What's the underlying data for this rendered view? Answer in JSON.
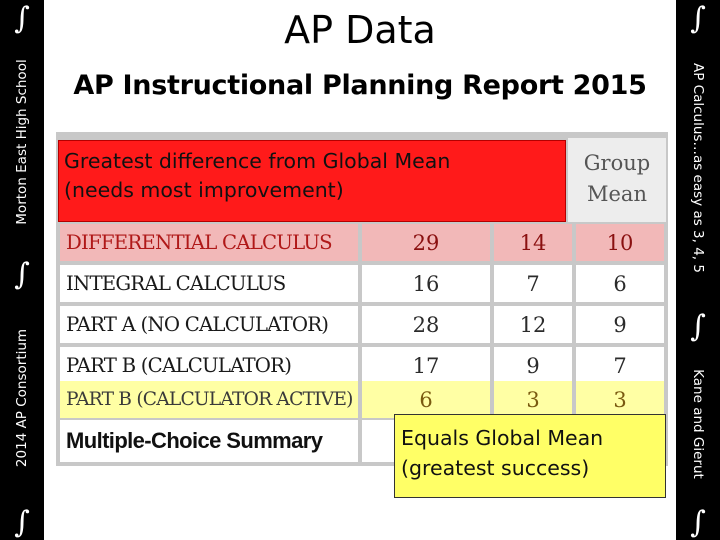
{
  "left_band": {
    "top_text": "Morton East High School",
    "bottom_text": "2014 AP Consortium",
    "integral_symbol": "∫"
  },
  "right_band": {
    "top_text": "AP Calculus…as easy as 3, 4, 5",
    "bottom_text": "Kane and Gierut",
    "integral_symbol": "∫"
  },
  "header": {
    "title": "AP Data",
    "subtitle": "AP Instructional Planning Report 2015"
  },
  "report": {
    "group_mean_label": [
      "Group",
      "Mean"
    ],
    "rows": [
      {
        "name": "DIFFERENTIAL CALCULUS",
        "v1": "29",
        "v2": "14",
        "v3": "10",
        "highlight": "pink"
      },
      {
        "name": "INTEGRAL CALCULUS",
        "v1": "16",
        "v2": "7",
        "v3": "6",
        "highlight": "none"
      },
      {
        "name": "PART A (NO CALCULATOR)",
        "v1": "28",
        "v2": "12",
        "v3": "9",
        "highlight": "none"
      },
      {
        "name": "PART B (CALCULATOR)",
        "v1": "17",
        "v2": "9",
        "v3": "7",
        "highlight": "none"
      },
      {
        "name": "PART B (CALCULATOR ACTIVE)",
        "v1": "6",
        "v2": "3",
        "v3": "3",
        "highlight": "yellow"
      }
    ],
    "summary_row": "Multiple-Choice Summary"
  },
  "callouts": {
    "red": [
      "Greatest difference from Global Mean",
      "(needs most improvement)"
    ],
    "yellow": [
      "Equals Global Mean",
      "(greatest success)"
    ]
  },
  "colors": {
    "band": "#000000",
    "red_callout": "#ff1a1a",
    "yellow_callout": "#ffff66",
    "pink_row": "#f2b8b8",
    "yellow_row": "#ffffa4"
  }
}
